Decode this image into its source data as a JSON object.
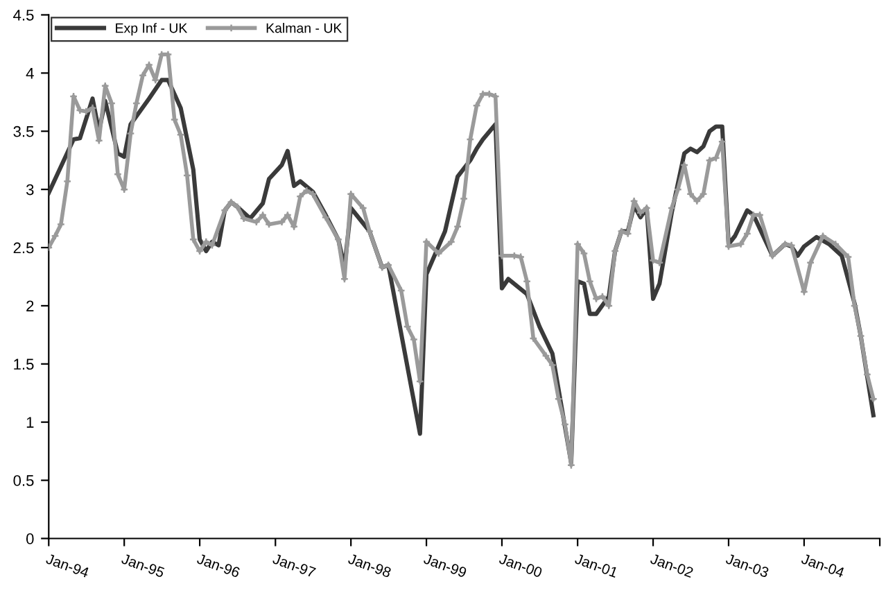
{
  "chart_data": {
    "type": "line",
    "xlim": [
      "1994-01",
      "2005-01"
    ],
    "xticks": [
      {
        "value": "1994-01",
        "label": "Jan-94"
      },
      {
        "value": "1995-01",
        "label": "Jan-95"
      },
      {
        "value": "1996-01",
        "label": "Jan-96"
      },
      {
        "value": "1997-01",
        "label": "Jan-97"
      },
      {
        "value": "1998-01",
        "label": "Jan-98"
      },
      {
        "value": "1999-01",
        "label": "Jan-99"
      },
      {
        "value": "2000-01",
        "label": "Jan-00"
      },
      {
        "value": "2001-01",
        "label": "Jan-01"
      },
      {
        "value": "2002-01",
        "label": "Jan-02"
      },
      {
        "value": "2003-01",
        "label": "Jan-03"
      },
      {
        "value": "2004-01",
        "label": "Jan-04"
      },
      {
        "value": "2005-01",
        "label": null
      }
    ],
    "ylim": [
      0,
      4.5
    ],
    "yticks": [
      0,
      0.5,
      1,
      1.5,
      2,
      2.5,
      3,
      3.5,
      4,
      4.5
    ],
    "grid": false,
    "legend": "top left",
    "line_style": "solid",
    "series": [
      {
        "name": "Exp Inf - UK",
        "color": "#3a3a3a",
        "marker": "none",
        "x": [
          "1994-01",
          "1994-05",
          "1994-06",
          "1994-08",
          "1994-09",
          "1994-10",
          "1994-12",
          "1995-01",
          "1995-02",
          "1995-05",
          "1995-07",
          "1995-08",
          "1995-10",
          "1995-12",
          "1996-01",
          "1996-02",
          "1996-03",
          "1996-04",
          "1996-05",
          "1996-06",
          "1996-07",
          "1996-09",
          "1996-11",
          "1996-12",
          "1997-02",
          "1997-03",
          "1997-04",
          "1997-05",
          "1997-07",
          "1997-09",
          "1997-11",
          "1997-12",
          "1998-01",
          "1998-04",
          "1998-06",
          "1998-07",
          "1998-12",
          "1999-01",
          "1999-04",
          "1999-06",
          "1999-08",
          "1999-09",
          "1999-10",
          "1999-12",
          "2000-01",
          "2000-02",
          "2000-05",
          "2000-07",
          "2000-09",
          "2000-12",
          "2001-01",
          "2001-02",
          "2001-03",
          "2001-04",
          "2001-06",
          "2001-07",
          "2001-08",
          "2001-09",
          "2001-10",
          "2001-11",
          "2001-12",
          "2002-01",
          "2002-02",
          "2002-04",
          "2002-06",
          "2002-07",
          "2002-08",
          "2002-09",
          "2002-10",
          "2002-11",
          "2002-12",
          "2003-01",
          "2003-02",
          "2003-04",
          "2003-05",
          "2003-08",
          "2003-10",
          "2003-11",
          "2003-12",
          "2004-01",
          "2004-03",
          "2004-05",
          "2004-07",
          "2004-09",
          "2004-10",
          "2004-12"
        ],
        "values": [
          2.97,
          3.43,
          3.44,
          3.78,
          3.5,
          3.76,
          3.31,
          3.28,
          3.56,
          3.78,
          3.94,
          3.94,
          3.7,
          3.17,
          2.57,
          2.47,
          2.55,
          2.52,
          2.82,
          2.89,
          2.85,
          2.75,
          2.88,
          3.09,
          3.21,
          3.33,
          3.03,
          3.07,
          2.98,
          2.78,
          2.57,
          2.33,
          2.84,
          2.64,
          2.33,
          2.35,
          0.9,
          2.27,
          2.64,
          3.11,
          3.25,
          3.35,
          3.43,
          3.56,
          2.15,
          2.23,
          2.1,
          1.82,
          1.59,
          0.65,
          2.21,
          2.19,
          1.93,
          1.93,
          2.08,
          2.47,
          2.64,
          2.64,
          2.86,
          2.76,
          2.84,
          2.06,
          2.19,
          2.8,
          3.31,
          3.35,
          3.32,
          3.37,
          3.5,
          3.54,
          3.54,
          2.53,
          2.6,
          2.82,
          2.78,
          2.43,
          2.53,
          2.51,
          2.43,
          2.51,
          2.59,
          2.53,
          2.43,
          2.02,
          1.74,
          1.06
        ]
      },
      {
        "name": "Kalman - UK",
        "color": "#9a9a9a",
        "marker": "cross",
        "x": [
          "1994-01",
          "1994-02",
          "1994-03",
          "1994-04",
          "1994-05",
          "1994-06",
          "1994-07",
          "1994-08",
          "1994-09",
          "1994-10",
          "1994-11",
          "1994-12",
          "1995-01",
          "1995-02",
          "1995-03",
          "1995-04",
          "1995-05",
          "1995-06",
          "1995-07",
          "1995-08",
          "1995-09",
          "1995-10",
          "1995-11",
          "1995-12",
          "1996-01",
          "1996-02",
          "1996-03",
          "1996-05",
          "1996-06",
          "1996-07",
          "1996-08",
          "1996-10",
          "1996-11",
          "1996-12",
          "1997-02",
          "1997-03",
          "1997-04",
          "1997-05",
          "1997-06",
          "1997-07",
          "1997-09",
          "1997-11",
          "1997-12",
          "1998-01",
          "1998-03",
          "1998-04",
          "1998-06",
          "1998-07",
          "1998-09",
          "1998-10",
          "1998-11",
          "1998-12",
          "1999-01",
          "1999-03",
          "1999-05",
          "1999-06",
          "1999-07",
          "1999-08",
          "1999-09",
          "1999-10",
          "1999-11",
          "1999-12",
          "2000-01",
          "2000-03",
          "2000-04",
          "2000-05",
          "2000-06",
          "2000-08",
          "2000-09",
          "2000-10",
          "2000-11",
          "2000-12",
          "2001-01",
          "2001-02",
          "2001-03",
          "2001-04",
          "2001-05",
          "2001-06",
          "2001-07",
          "2001-08",
          "2001-09",
          "2001-10",
          "2001-11",
          "2001-12",
          "2002-01",
          "2002-02",
          "2002-04",
          "2002-05",
          "2002-06",
          "2002-07",
          "2002-08",
          "2002-09",
          "2002-10",
          "2002-11",
          "2002-12",
          "2003-01",
          "2003-03",
          "2003-04",
          "2003-05",
          "2003-06",
          "2003-08",
          "2003-10",
          "2003-11",
          "2004-01",
          "2004-02",
          "2004-04",
          "2004-06",
          "2004-08",
          "2004-09",
          "2004-10",
          "2004-11",
          "2004-12"
        ],
        "values": [
          2.5,
          2.6,
          2.7,
          3.07,
          3.8,
          3.68,
          3.67,
          3.7,
          3.42,
          3.89,
          3.74,
          3.13,
          3.0,
          3.48,
          3.74,
          3.98,
          4.07,
          3.94,
          4.16,
          4.16,
          3.6,
          3.47,
          3.12,
          2.57,
          2.47,
          2.55,
          2.52,
          2.82,
          2.89,
          2.85,
          2.75,
          2.72,
          2.78,
          2.7,
          2.72,
          2.78,
          2.68,
          2.94,
          2.99,
          2.96,
          2.76,
          2.57,
          2.23,
          2.96,
          2.84,
          2.64,
          2.33,
          2.35,
          2.13,
          1.82,
          1.71,
          1.35,
          2.55,
          2.45,
          2.55,
          2.68,
          2.92,
          3.43,
          3.72,
          3.82,
          3.82,
          3.8,
          2.43,
          2.43,
          2.42,
          2.21,
          1.72,
          1.57,
          1.49,
          1.2,
          0.98,
          0.63,
          2.53,
          2.45,
          2.21,
          2.06,
          2.08,
          2.0,
          2.47,
          2.64,
          2.62,
          2.9,
          2.8,
          2.84,
          2.39,
          2.37,
          2.84,
          3.0,
          3.21,
          2.96,
          2.9,
          2.96,
          3.25,
          3.27,
          3.41,
          2.51,
          2.53,
          2.62,
          2.78,
          2.78,
          2.43,
          2.53,
          2.52,
          2.12,
          2.37,
          2.6,
          2.53,
          2.42,
          2.0,
          1.74,
          1.41,
          1.2
        ]
      }
    ]
  }
}
